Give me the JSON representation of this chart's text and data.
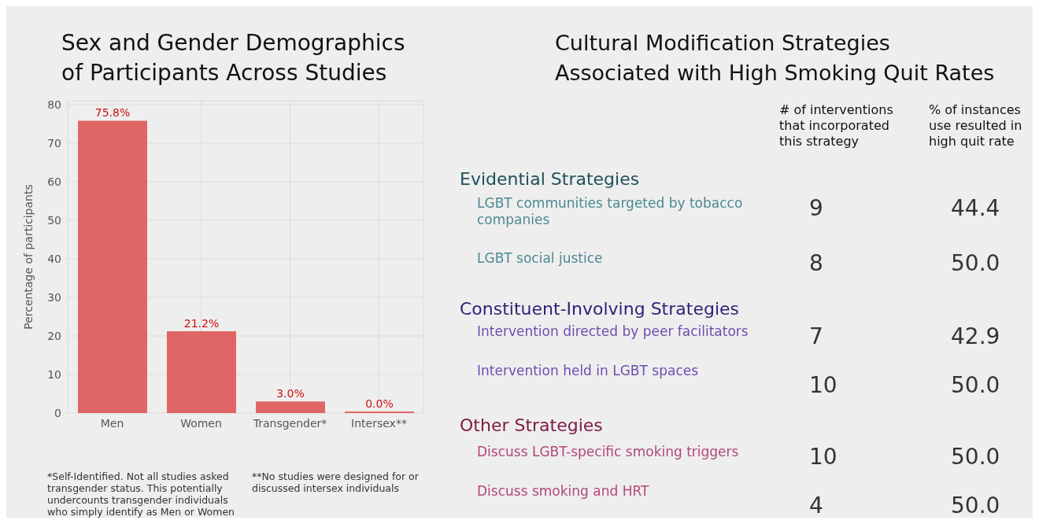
{
  "chart_data": [
    {
      "type": "bar",
      "title": "Sex and Gender Demographics\nof Participants Across Studies",
      "ylabel": "Percentage of participants",
      "categories": [
        "Men",
        "Women",
        "Transgender*",
        "Intersex**"
      ],
      "values": [
        75.8,
        21.2,
        3.0,
        0.0
      ],
      "color": "#e06666",
      "value_labels": [
        "75.8%",
        "21.2%",
        "3.0%",
        "0.0%"
      ],
      "ylim": [
        0,
        81
      ],
      "yticks": [
        0,
        10,
        20,
        30,
        40,
        50,
        60,
        70,
        80
      ],
      "grid": true,
      "annotations": [
        "*Self-Identified. Not all studies asked transgender status. This potentially undercounts transgender individuals who simply identify as Men or Women",
        "**No studies were designed for or discussed intersex individuals"
      ]
    },
    {
      "type": "other",
      "title": "Cultural Modification Strategies\nAssociated with High Smoking Quit Rates",
      "categories": [
        "LGBT communities targeted by tobacco companies",
        "LGBT social justice",
        "Intervention directed by peer facilitators",
        "Intervention held in LGBT spaces",
        "Discuss LGBT-specific smoking triggers",
        "Discuss smoking and HRT"
      ],
      "colors": [
        "#4a8a94",
        "#4a8a94",
        "#6a4fb0",
        "#6a4fb0",
        "#b04a78",
        "#b04a78"
      ],
      "annotations": [
        "Evidential Strategies",
        "Constituent-Involving Strategies",
        "Other Strategies"
      ],
      "series": [
        {
          "name": "# of interventions that incorporated this strategy",
          "values": [
            9,
            8,
            7,
            10,
            10,
            4
          ]
        },
        {
          "name": "% of instances use resulted in high quit rate",
          "values": [
            44.4,
            50.0,
            42.9,
            50.0,
            50.0,
            50.0
          ],
          "value_labels": [
            "44.4",
            "50.0",
            "42.9",
            "50.0",
            "50.0",
            "50.0"
          ]
        }
      ],
      "data_labels": true
    }
  ]
}
